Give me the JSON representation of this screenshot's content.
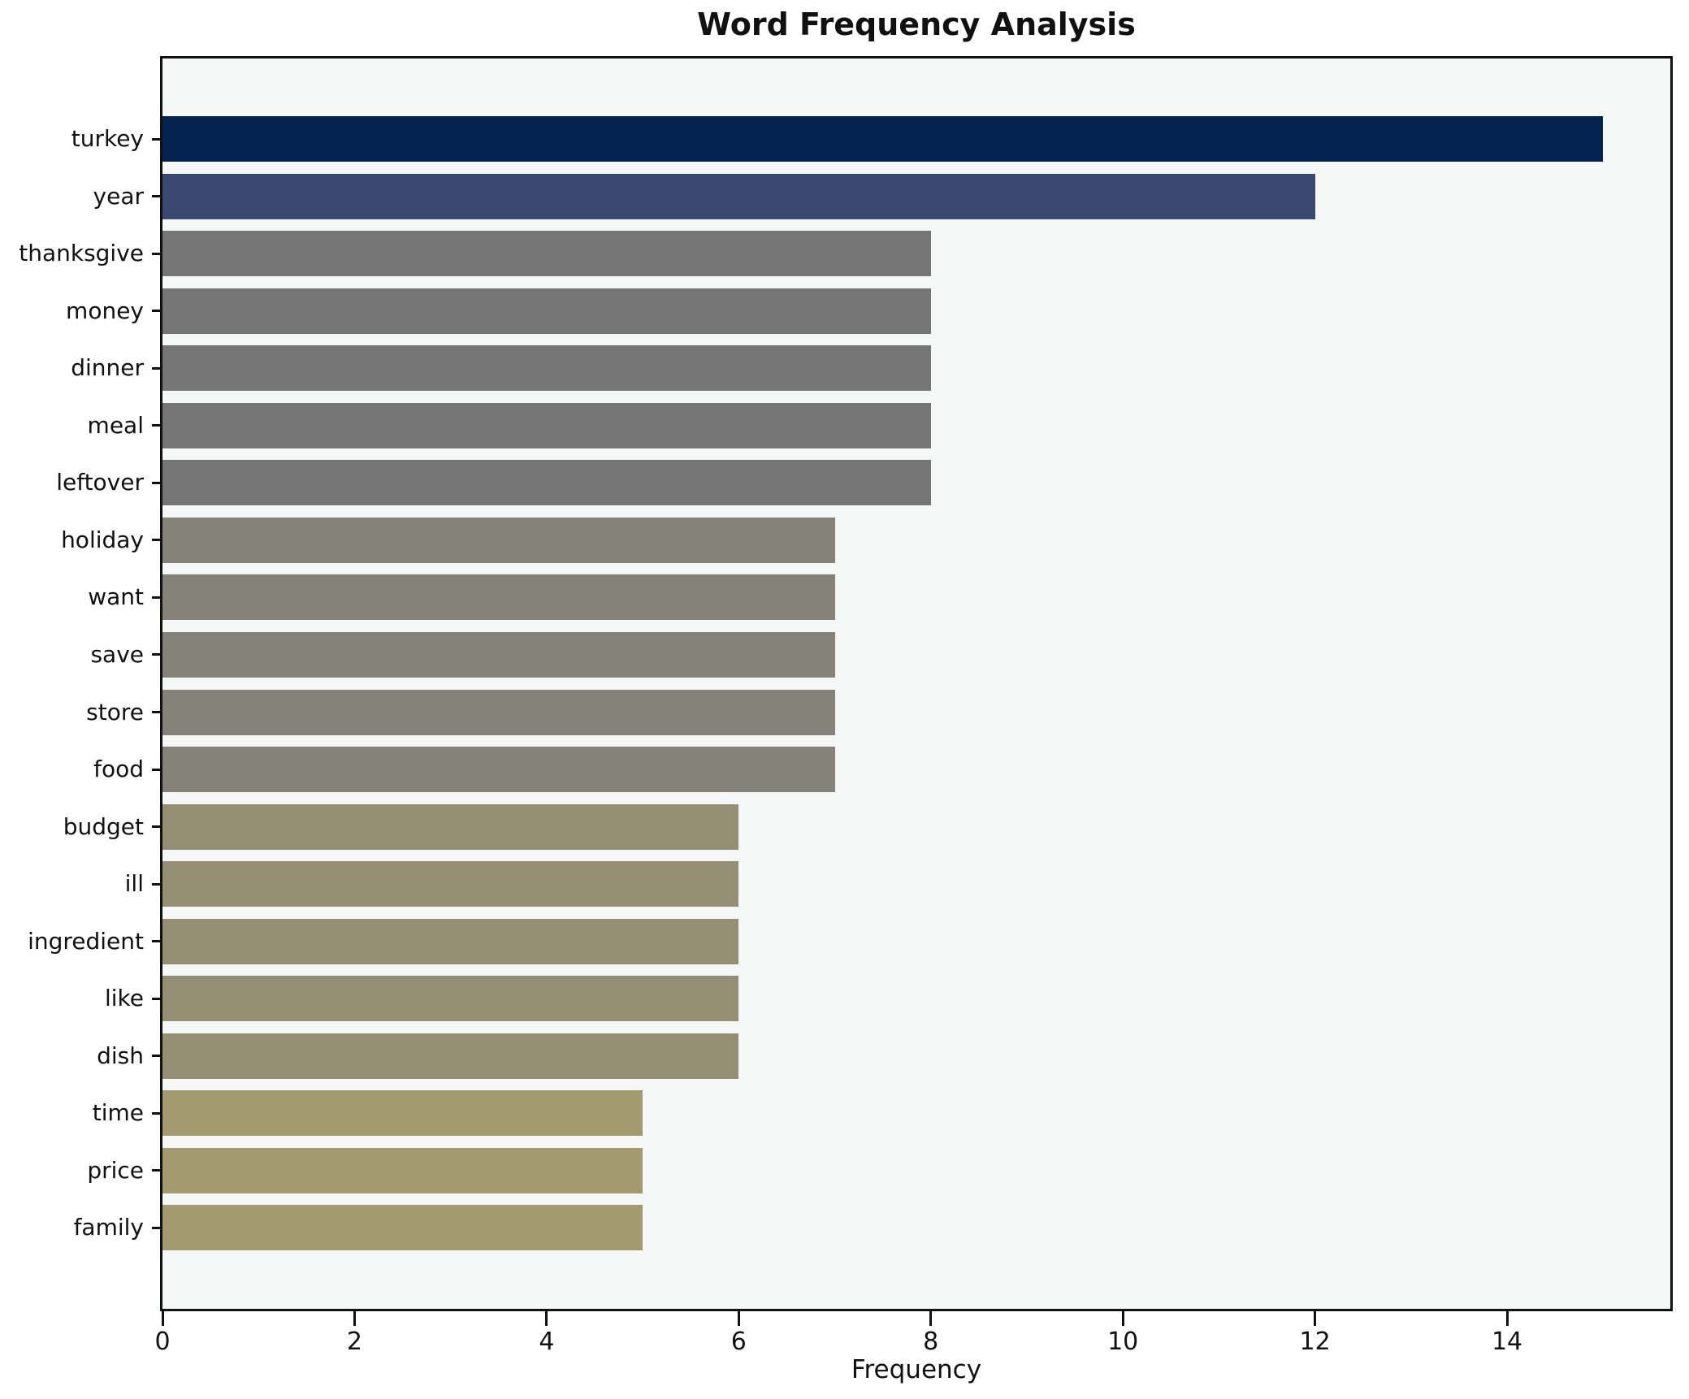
{
  "figure": {
    "background": "#ffffff",
    "plot_background": "#f5f6f6",
    "spine_color": "#111111",
    "text_color": "#111111"
  },
  "chart_data": {
    "type": "bar",
    "orientation": "horizontal",
    "title": "Word Frequency Analysis",
    "xlabel": "Frequency",
    "ylabel": "",
    "categories": [
      "turkey",
      "year",
      "thanksgive",
      "money",
      "dinner",
      "meal",
      "leftover",
      "holiday",
      "want",
      "save",
      "store",
      "food",
      "budget",
      "ill",
      "ingredient",
      "like",
      "dish",
      "time",
      "price",
      "family"
    ],
    "values": [
      15,
      12,
      8,
      8,
      8,
      8,
      8,
      7,
      7,
      7,
      7,
      7,
      6,
      6,
      6,
      6,
      6,
      5,
      5,
      5
    ],
    "bar_colors": [
      "#02234e",
      "#3a476e",
      "#757575",
      "#757575",
      "#757575",
      "#757575",
      "#757575",
      "#85827a",
      "#85827a",
      "#85827a",
      "#85827a",
      "#85827a",
      "#948e75",
      "#948e75",
      "#948e75",
      "#948e75",
      "#948e75",
      "#a49a70",
      "#a49a70",
      "#a49a70"
    ],
    "xlim": [
      0,
      15.7
    ],
    "xticks": [
      0,
      2,
      4,
      6,
      8,
      10,
      12,
      14
    ],
    "grid": false,
    "legend": null
  }
}
